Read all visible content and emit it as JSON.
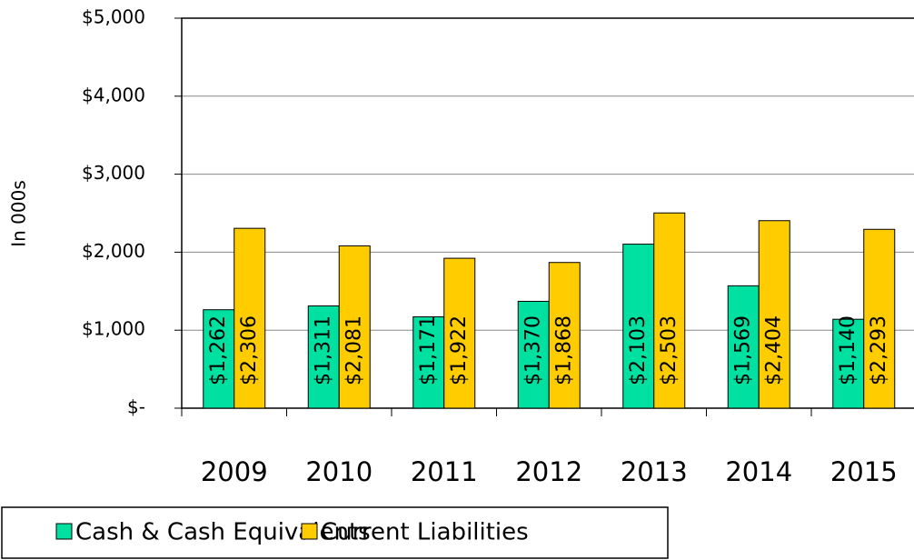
{
  "chart_data": {
    "type": "bar",
    "y_axis_label": "In 000s",
    "categories": [
      "2009",
      "2010",
      "2011",
      "2012",
      "2013",
      "2014",
      "2015"
    ],
    "series": [
      {
        "name": "Cash & Cash Equivalents",
        "color": "#00e0a0",
        "values": [
          1262,
          1311,
          1171,
          1370,
          2103,
          1569,
          1140
        ],
        "value_labels": [
          "$1,262",
          "$1,311",
          "$1,171",
          "$1,370",
          "$2,103",
          "$1,569",
          "$1,140"
        ]
      },
      {
        "name": "Current Liabilities",
        "color": "#ffcc00",
        "values": [
          2306,
          2081,
          1922,
          1868,
          2503,
          2404,
          2293
        ],
        "value_labels": [
          "$2,306",
          "$2,081",
          "$1,922",
          "$1,868",
          "$2,503",
          "$2,404",
          "$2,293"
        ]
      }
    ],
    "ylim": [
      0,
      5000
    ],
    "yticks": [
      {
        "value": 0,
        "label": "$-"
      },
      {
        "value": 1000,
        "label": "$1,000"
      },
      {
        "value": 2000,
        "label": "$2,000"
      },
      {
        "value": 3000,
        "label": "$3,000"
      },
      {
        "value": 4000,
        "label": "$4,000"
      },
      {
        "value": 5000,
        "label": "$5,000"
      }
    ],
    "grid": true
  }
}
